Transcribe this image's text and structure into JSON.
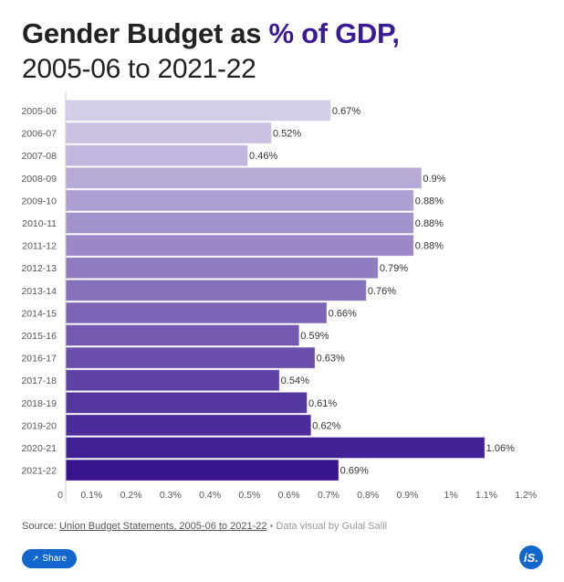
{
  "header": {
    "title_main": "Gender Budget as ",
    "title_accent": "% of GDP,",
    "subtitle": "2005-06 to 2021-22"
  },
  "chart_data": {
    "type": "bar",
    "orientation": "horizontal",
    "title": "Gender Budget as % of GDP, 2005-06 to 2021-22",
    "xlabel": "",
    "ylabel": "",
    "categories": [
      "2005-06",
      "2006-07",
      "2007-08",
      "2008-09",
      "2009-10",
      "2010-11",
      "2011-12",
      "2012-13",
      "2013-14",
      "2014-15",
      "2015-16",
      "2016-17",
      "2017-18",
      "2018-19",
      "2019-20",
      "2020-21",
      "2021-22"
    ],
    "values": [
      0.67,
      0.52,
      0.46,
      0.9,
      0.88,
      0.88,
      0.88,
      0.79,
      0.76,
      0.66,
      0.59,
      0.63,
      0.54,
      0.61,
      0.62,
      1.06,
      0.69
    ],
    "value_labels": [
      "0.67%",
      "0.52%",
      "0.46%",
      "0.9%",
      "0.88%",
      "0.88%",
      "0.88%",
      "0.79%",
      "0.76%",
      "0.66%",
      "0.59%",
      "0.63%",
      "0.54%",
      "0.61%",
      "0.62%",
      "1.06%",
      "0.69%"
    ],
    "xlim": [
      0,
      1.2
    ],
    "x_ticks": [
      0,
      0.1,
      0.2,
      0.3,
      0.4,
      0.5,
      0.6,
      0.7,
      0.8,
      0.9,
      1.0,
      1.1,
      1.2
    ],
    "x_tick_labels": [
      "0",
      "0.1%",
      "0.2%",
      "0.3%",
      "0.4%",
      "0.5%",
      "0.6%",
      "0.7%",
      "0.8%",
      "0.9%",
      "1%",
      "1.1%",
      "1.2%"
    ],
    "grid": false,
    "legend": "none",
    "color_start": "#d4cde8",
    "color_end": "#38148f"
  },
  "footer": {
    "source_prefix": "Source: ",
    "source_link": "Union Budget Statements, 2005-06 to 2021-22",
    "credit": " • Data visual by Gulal Salil"
  },
  "share_button": {
    "label": "Share",
    "icon": "share-icon"
  },
  "logo": {
    "text": "iS."
  }
}
